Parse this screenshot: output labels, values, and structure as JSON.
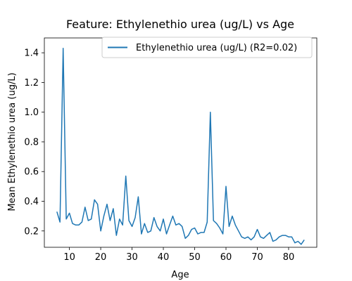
{
  "chart_data": {
    "type": "line",
    "title": "Feature: Ethylenethio urea (ug/L) vs Age",
    "xlabel": "Age",
    "ylabel": "Mean Ethylenethio urea (ug/L)",
    "xlim": [
      2,
      89
    ],
    "ylim": [
      0.09,
      1.5
    ],
    "xticks": [
      10,
      20,
      30,
      40,
      50,
      60,
      70,
      80
    ],
    "xtick_labels": [
      "10",
      "20",
      "30",
      "40",
      "50",
      "60",
      "70",
      "80"
    ],
    "yticks": [
      0.2,
      0.4,
      0.6,
      0.8,
      1.0,
      1.2,
      1.4
    ],
    "ytick_labels": [
      "0.2",
      "0.4",
      "0.6",
      "0.8",
      "1.0",
      "1.2",
      "1.4"
    ],
    "grid": false,
    "legend_position": "top-right",
    "series": [
      {
        "name": "Ethylenethio urea (ug/L) (R2=0.02)",
        "color": "#1f77b4",
        "x": [
          6,
          7,
          8,
          9,
          10,
          11,
          12,
          13,
          14,
          15,
          16,
          17,
          18,
          19,
          20,
          21,
          22,
          23,
          24,
          25,
          26,
          27,
          28,
          29,
          30,
          31,
          32,
          33,
          34,
          35,
          36,
          37,
          38,
          39,
          40,
          41,
          42,
          43,
          44,
          45,
          46,
          47,
          48,
          49,
          50,
          51,
          52,
          53,
          54,
          55,
          56,
          57,
          58,
          59,
          60,
          61,
          62,
          63,
          64,
          65,
          66,
          67,
          68,
          69,
          70,
          71,
          72,
          73,
          74,
          75,
          76,
          77,
          78,
          79,
          80,
          81,
          82,
          83,
          84,
          85
        ],
        "y": [
          0.33,
          0.26,
          1.43,
          0.28,
          0.32,
          0.25,
          0.24,
          0.24,
          0.26,
          0.36,
          0.27,
          0.28,
          0.41,
          0.38,
          0.2,
          0.3,
          0.38,
          0.27,
          0.35,
          0.17,
          0.28,
          0.24,
          0.57,
          0.27,
          0.23,
          0.29,
          0.43,
          0.18,
          0.25,
          0.19,
          0.2,
          0.29,
          0.23,
          0.2,
          0.28,
          0.18,
          0.24,
          0.3,
          0.24,
          0.25,
          0.23,
          0.15,
          0.17,
          0.21,
          0.22,
          0.18,
          0.19,
          0.19,
          0.26,
          1.0,
          0.27,
          0.25,
          0.22,
          0.18,
          0.5,
          0.23,
          0.3,
          0.24,
          0.2,
          0.16,
          0.15,
          0.16,
          0.14,
          0.16,
          0.21,
          0.16,
          0.15,
          0.17,
          0.19,
          0.13,
          0.14,
          0.16,
          0.17,
          0.17,
          0.16,
          0.16,
          0.12,
          0.13,
          0.11,
          0.14
        ]
      }
    ]
  }
}
